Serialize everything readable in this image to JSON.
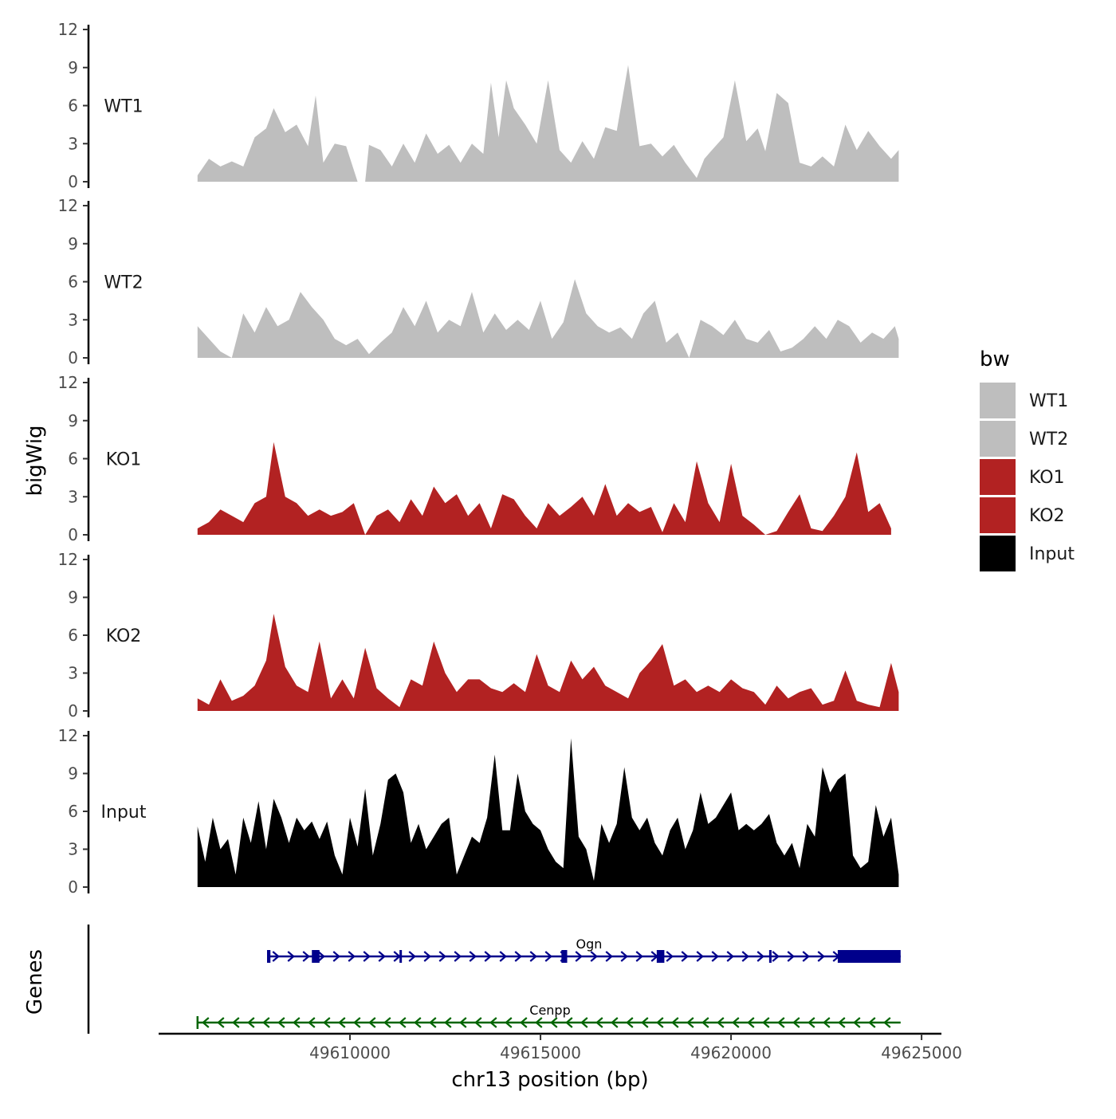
{
  "chart_data": {
    "type": "area",
    "title": "",
    "ylabel": "bigWig",
    "xlabel": "chr13 position (bp)",
    "xlim": [
      49605000,
      49625500
    ],
    "ylim": [
      0,
      12
    ],
    "y_ticks": [
      0,
      3,
      6,
      9,
      12
    ],
    "x_ticks": [
      49610000,
      49615000,
      49620000,
      49625000
    ],
    "x_tick_labels": [
      "49610000",
      "49615000",
      "49620000",
      "49625000"
    ],
    "legend": {
      "title": "bw",
      "position": "right",
      "entries": [
        {
          "label": "WT1",
          "color": "#bebebe"
        },
        {
          "label": "WT2",
          "color": "#bebebe"
        },
        {
          "label": "KO1",
          "color": "#b22222"
        },
        {
          "label": "KO2",
          "color": "#b22222"
        },
        {
          "label": "Input",
          "color": "#000000"
        }
      ]
    },
    "tracks": [
      {
        "name": "WT1",
        "color": "#bebebe",
        "x": [
          49606000,
          49606300,
          49606600,
          49606900,
          49607200,
          49607500,
          49607800,
          49608000,
          49608300,
          49608600,
          49608900,
          49609100,
          49609300,
          49609600,
          49609900,
          49610200,
          49610400,
          49610500,
          49610800,
          49611100,
          49611400,
          49611700,
          49612000,
          49612300,
          49612600,
          49612900,
          49613200,
          49613500,
          49613700,
          49613900,
          49614100,
          49614300,
          49614600,
          49614900,
          49615200,
          49615500,
          49615800,
          49616100,
          49616400,
          49616700,
          49617000,
          49617300,
          49617600,
          49617900,
          49618200,
          49618500,
          49618800,
          49619100,
          49619300,
          49619500,
          49619800,
          49620100,
          49620400,
          49620700,
          49620900,
          49621200,
          49621500,
          49621800,
          49622100,
          49622400,
          49622700,
          49623000,
          49623300,
          49623600,
          49623900,
          49624200,
          49624400
        ],
        "values": [
          0.5,
          1.8,
          1.2,
          1.6,
          1.2,
          3.5,
          4.2,
          5.8,
          3.9,
          4.5,
          2.8,
          6.8,
          1.5,
          3.0,
          2.8,
          0,
          0,
          2.9,
          2.5,
          1.2,
          3.0,
          1.5,
          3.8,
          2.2,
          2.9,
          1.5,
          3.0,
          2.2,
          7.8,
          3.5,
          8.0,
          5.8,
          4.5,
          3.0,
          8.0,
          2.5,
          1.5,
          3.2,
          1.8,
          4.3,
          4.0,
          9.2,
          2.8,
          3.0,
          2.0,
          2.9,
          1.5,
          0.3,
          1.8,
          2.5,
          3.5,
          8.0,
          3.2,
          4.2,
          2.4,
          7.0,
          6.2,
          1.5,
          1.2,
          2.0,
          1.2,
          4.5,
          2.5,
          4.0,
          2.8,
          1.8,
          2.5
        ]
      },
      {
        "name": "WT2",
        "color": "#bebebe",
        "x": [
          49606000,
          49606300,
          49606600,
          49606900,
          49607200,
          49607500,
          49607800,
          49608100,
          49608400,
          49608700,
          49609000,
          49609300,
          49609600,
          49609900,
          49610200,
          49610500,
          49610800,
          49611100,
          49611400,
          49611700,
          49612000,
          49612300,
          49612600,
          49612900,
          49613200,
          49613500,
          49613800,
          49614100,
          49614400,
          49614700,
          49615000,
          49615300,
          49615600,
          49615900,
          49616200,
          49616500,
          49616800,
          49617100,
          49617400,
          49617700,
          49618000,
          49618300,
          49618600,
          49618900,
          49619200,
          49619500,
          49619800,
          49620100,
          49620400,
          49620700,
          49621000,
          49621300,
          49621600,
          49621900,
          49622200,
          49622500,
          49622800,
          49623100,
          49623400,
          49623700,
          49624000,
          49624300,
          49624400
        ],
        "values": [
          2.5,
          1.5,
          0.5,
          0,
          3.5,
          2.0,
          4.0,
          2.5,
          3.0,
          5.2,
          4.0,
          3.0,
          1.5,
          1.0,
          1.5,
          0.3,
          1.2,
          2.0,
          4.0,
          2.5,
          4.5,
          2.0,
          3.0,
          2.5,
          5.2,
          2.0,
          3.5,
          2.2,
          3.0,
          2.2,
          4.5,
          1.5,
          2.8,
          6.2,
          3.5,
          2.5,
          2.0,
          2.4,
          1.5,
          3.5,
          4.5,
          1.2,
          2.0,
          0,
          3.0,
          2.5,
          1.8,
          3.0,
          1.5,
          1.2,
          2.2,
          0.5,
          0.8,
          1.5,
          2.5,
          1.5,
          3.0,
          2.5,
          1.2,
          2.0,
          1.5,
          2.5,
          1.5
        ]
      },
      {
        "name": "KO1",
        "color": "#b22222",
        "x": [
          49606000,
          49606300,
          49606600,
          49606900,
          49607200,
          49607500,
          49607800,
          49608000,
          49608300,
          49608600,
          49608900,
          49609200,
          49609500,
          49609800,
          49610100,
          49610400,
          49610700,
          49611000,
          49611300,
          49611600,
          49611900,
          49612200,
          49612500,
          49612800,
          49613100,
          49613400,
          49613700,
          49614000,
          49614300,
          49614600,
          49614900,
          49615200,
          49615500,
          49615800,
          49616100,
          49616400,
          49616700,
          49617000,
          49617300,
          49617600,
          49617900,
          49618200,
          49618500,
          49618800,
          49619100,
          49619400,
          49619700,
          49620000,
          49620300,
          49620600,
          49620900,
          49621200,
          49621500,
          49621800,
          49622100,
          49622400,
          49622700,
          49623000,
          49623300,
          49623600,
          49623900,
          49624200
        ],
        "values": [
          0.5,
          1.0,
          2.0,
          1.5,
          1.0,
          2.5,
          3.0,
          7.3,
          3.0,
          2.5,
          1.5,
          2.0,
          1.5,
          1.8,
          2.5,
          0,
          1.5,
          2.0,
          1.0,
          2.8,
          1.5,
          3.8,
          2.5,
          3.2,
          1.5,
          2.5,
          0.5,
          3.2,
          2.8,
          1.5,
          0.5,
          2.5,
          1.5,
          2.2,
          3.0,
          1.5,
          4.0,
          1.5,
          2.5,
          1.8,
          2.2,
          0.2,
          2.5,
          1.0,
          5.8,
          2.5,
          1.0,
          5.6,
          1.5,
          0.8,
          0,
          0.3,
          1.8,
          3.2,
          0.5,
          0.3,
          1.5,
          3.0,
          6.5,
          1.8,
          2.5,
          0.5
        ]
      },
      {
        "name": "KO2",
        "color": "#b22222",
        "x": [
          49606000,
          49606300,
          49606600,
          49606900,
          49607200,
          49607500,
          49607800,
          49608000,
          49608300,
          49608600,
          49608900,
          49609200,
          49609500,
          49609800,
          49610100,
          49610400,
          49610700,
          49611000,
          49611300,
          49611600,
          49611900,
          49612200,
          49612500,
          49612800,
          49613100,
          49613400,
          49613700,
          49614000,
          49614300,
          49614600,
          49614900,
          49615200,
          49615500,
          49615800,
          49616100,
          49616400,
          49616700,
          49617000,
          49617300,
          49617600,
          49617900,
          49618200,
          49618500,
          49618800,
          49619100,
          49619400,
          49619700,
          49620000,
          49620300,
          49620600,
          49620900,
          49621200,
          49621500,
          49621800,
          49622100,
          49622400,
          49622700,
          49623000,
          49623300,
          49623600,
          49623900,
          49624200,
          49624400
        ],
        "values": [
          1.0,
          0.5,
          2.5,
          0.8,
          1.2,
          2.0,
          4.0,
          7.7,
          3.5,
          2.0,
          1.5,
          5.5,
          1.0,
          2.5,
          1.0,
          5.0,
          1.8,
          1.0,
          0.3,
          2.5,
          2.0,
          5.5,
          3.0,
          1.5,
          2.5,
          2.5,
          1.8,
          1.5,
          2.2,
          1.5,
          4.5,
          2.0,
          1.5,
          4.0,
          2.5,
          3.5,
          2.0,
          1.5,
          1.0,
          3.0,
          4.0,
          5.3,
          2.0,
          2.5,
          1.5,
          2.0,
          1.5,
          2.5,
          1.8,
          1.5,
          0.5,
          2.0,
          1.0,
          1.5,
          1.8,
          0.5,
          0.8,
          3.2,
          0.8,
          0.5,
          0.3,
          3.8,
          1.5
        ]
      },
      {
        "name": "Input",
        "color": "#000000",
        "x": [
          49606000,
          49606200,
          49606400,
          49606600,
          49606800,
          49607000,
          49607200,
          49607400,
          49607600,
          49607800,
          49608000,
          49608200,
          49608400,
          49608600,
          49608800,
          49609000,
          49609200,
          49609400,
          49609600,
          49609800,
          49610000,
          49610200,
          49610400,
          49610600,
          49610800,
          49611000,
          49611200,
          49611400,
          49611600,
          49611800,
          49612000,
          49612200,
          49612400,
          49612600,
          49612800,
          49613000,
          49613200,
          49613400,
          49613600,
          49613800,
          49614000,
          49614200,
          49614400,
          49614600,
          49614800,
          49615000,
          49615200,
          49615400,
          49615600,
          49615800,
          49616000,
          49616200,
          49616400,
          49616600,
          49616800,
          49617000,
          49617200,
          49617400,
          49617600,
          49617800,
          49618000,
          49618200,
          49618400,
          49618600,
          49618800,
          49619000,
          49619200,
          49619400,
          49619600,
          49619800,
          49620000,
          49620200,
          49620400,
          49620600,
          49620800,
          49621000,
          49621200,
          49621400,
          49621600,
          49621800,
          49622000,
          49622200,
          49622400,
          49622600,
          49622800,
          49623000,
          49623200,
          49623400,
          49623600,
          49623800,
          49624000,
          49624200,
          49624400
        ],
        "values": [
          4.8,
          2.0,
          5.5,
          3.0,
          3.8,
          1.0,
          5.5,
          3.5,
          6.8,
          3.0,
          7.0,
          5.5,
          3.5,
          5.5,
          4.5,
          5.2,
          3.8,
          5.2,
          2.5,
          1.0,
          5.5,
          3.2,
          7.8,
          2.5,
          5.0,
          8.5,
          9.0,
          7.5,
          3.5,
          5.0,
          3.0,
          4.0,
          5.0,
          5.5,
          1.0,
          2.5,
          4.0,
          3.5,
          5.5,
          10.5,
          4.5,
          4.5,
          9.0,
          6.0,
          5.0,
          4.5,
          3.0,
          2.0,
          1.5,
          11.8,
          4.0,
          3.0,
          0.5,
          5.0,
          3.5,
          5.0,
          9.5,
          5.5,
          4.5,
          5.5,
          3.5,
          2.5,
          4.5,
          5.5,
          3.0,
          4.5,
          7.5,
          5.0,
          5.5,
          6.5,
          7.5,
          4.5,
          5.0,
          4.5,
          5.0,
          5.8,
          3.5,
          2.5,
          3.5,
          1.5,
          5.0,
          4.0,
          9.5,
          7.5,
          8.5,
          9.0,
          2.5,
          1.5,
          2.0,
          6.5,
          4.0,
          5.5,
          1.0
        ]
      }
    ],
    "genes": [
      {
        "name": "Ogn",
        "strand": "+",
        "color": "#00008b",
        "start": 49607850,
        "end": 49624450,
        "exons": [
          [
            49607850,
            49607900
          ],
          [
            49609000,
            49609200
          ],
          [
            49611300,
            49611330
          ],
          [
            49615550,
            49615700
          ],
          [
            49618050,
            49618250
          ],
          [
            49621000,
            49621030
          ],
          [
            49622800,
            49624450
          ]
        ]
      },
      {
        "name": "Cenpp",
        "strand": "-",
        "color": "#006400",
        "start": 49606000,
        "end": 49624450,
        "exons": []
      }
    ],
    "gene_track_label": "Genes"
  }
}
